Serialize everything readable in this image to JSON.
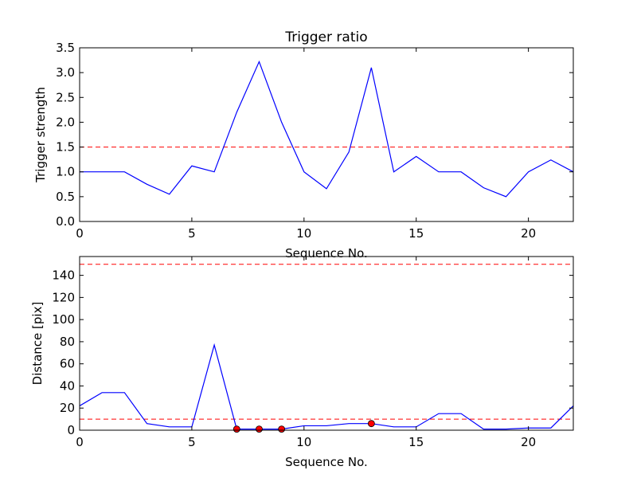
{
  "chart_data": [
    {
      "type": "line",
      "title": "Trigger ratio",
      "xlabel": "Sequence No.",
      "ylabel": "Trigger strength",
      "xlim": [
        0,
        22
      ],
      "ylim": [
        0,
        3.5
      ],
      "xticks": [
        0,
        5,
        10,
        15,
        20
      ],
      "xtick_labels": [
        "0",
        "5",
        "10",
        "15",
        "20"
      ],
      "yticks": [
        0,
        0.5,
        1.0,
        1.5,
        2.0,
        2.5,
        3.0,
        3.5
      ],
      "ytick_labels": [
        "0.0",
        "0.5",
        "1.0",
        "1.5",
        "2.0",
        "2.5",
        "3.0",
        "3.5"
      ],
      "grid": false,
      "series": [
        {
          "color": "#0000ff",
          "x": [
            0,
            1,
            2,
            3,
            4,
            5,
            6,
            7,
            8,
            9,
            10,
            11,
            12,
            13,
            14,
            15,
            16,
            17,
            18,
            19,
            20,
            21,
            22
          ],
          "values": [
            1.0,
            1.0,
            1.0,
            0.75,
            0.55,
            1.12,
            1.0,
            2.2,
            3.22,
            2.0,
            1.0,
            0.66,
            1.4,
            3.1,
            1.0,
            1.31,
            1.0,
            1.0,
            0.68,
            0.5,
            1.0,
            1.24,
            1.0
          ]
        }
      ],
      "hlines": [
        {
          "y": 1.5,
          "color": "#ff0000",
          "style": "dashed"
        }
      ],
      "markers": []
    },
    {
      "type": "line",
      "title": "",
      "xlabel": "Sequence No.",
      "ylabel": "Distance [pix]",
      "xlim": [
        0,
        22
      ],
      "ylim": [
        0,
        157
      ],
      "xticks": [
        0,
        5,
        10,
        15,
        20
      ],
      "xtick_labels": [
        "0",
        "5",
        "10",
        "15",
        "20"
      ],
      "yticks": [
        0,
        20,
        40,
        60,
        80,
        100,
        120,
        140
      ],
      "ytick_labels": [
        "0",
        "20",
        "40",
        "60",
        "80",
        "100",
        "120",
        "140"
      ],
      "grid": false,
      "series": [
        {
          "color": "#0000ff",
          "x": [
            0,
            1,
            2,
            3,
            4,
            5,
            6,
            7,
            8,
            9,
            10,
            11,
            12,
            13,
            14,
            15,
            16,
            17,
            18,
            19,
            20,
            21,
            22
          ],
          "values": [
            22,
            34,
            34,
            6,
            3,
            3,
            77,
            1,
            1,
            1,
            4,
            4,
            6,
            6,
            3,
            3,
            15,
            15,
            1,
            1,
            2,
            2,
            22
          ]
        }
      ],
      "hlines": [
        {
          "y": 150,
          "color": "#ff0000",
          "style": "dashed"
        },
        {
          "y": 10,
          "color": "#ff0000",
          "style": "dashed"
        }
      ],
      "markers": [
        {
          "x": 7,
          "y": 1,
          "color": "#ff0000"
        },
        {
          "x": 8,
          "y": 1,
          "color": "#ff0000"
        },
        {
          "x": 9,
          "y": 1,
          "color": "#ff0000"
        },
        {
          "x": 13,
          "y": 6,
          "color": "#ff0000"
        }
      ]
    }
  ]
}
